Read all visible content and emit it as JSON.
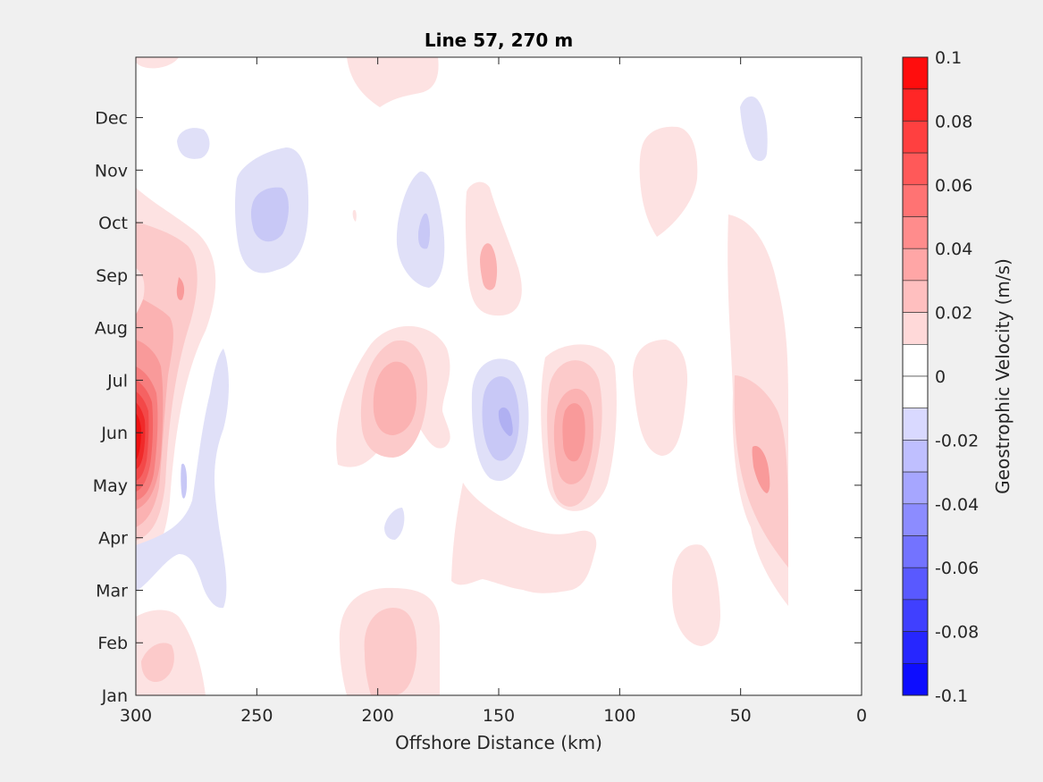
{
  "chart_data": {
    "type": "heatmap",
    "title": "Line 57, 270 m",
    "xlabel": "Offshore Distance (km)",
    "ylabel": "",
    "xlim": [
      300,
      0
    ],
    "x_reversed": true,
    "x_ticks": [
      300,
      250,
      200,
      150,
      100,
      50,
      0
    ],
    "y_ticks": [
      "Jan",
      "Feb",
      "Mar",
      "Apr",
      "May",
      "Jun",
      "Jul",
      "Aug",
      "Sep",
      "Oct",
      "Nov",
      "Dec"
    ],
    "colorbar": {
      "label": "Geostrophic Velocity (m/s)",
      "range": [
        -0.1,
        0.1
      ],
      "tick_values": [
        0.1,
        0.08,
        0.06,
        0.04,
        0.02,
        0,
        -0.02,
        -0.04,
        -0.06,
        -0.08,
        -0.1
      ],
      "tick_labels": [
        "0.1",
        "0.08",
        "0.06",
        "0.04",
        "0.02",
        "0",
        "-0.02",
        "-0.04",
        "-0.06",
        "-0.08",
        "-0.1"
      ],
      "levels": [
        0.1,
        0.09,
        0.08,
        0.07,
        0.06,
        0.05,
        0.04,
        0.03,
        0.02,
        0.01,
        0,
        -0.01,
        -0.02,
        -0.03,
        -0.04,
        -0.05,
        -0.06,
        -0.07,
        -0.08,
        -0.09,
        -0.1
      ],
      "colormap": "blue-white-red"
    },
    "features": [
      {
        "sign": "positive",
        "x": [
          290,
          300
        ],
        "y": [
          4.7,
          5.8
        ],
        "peak": 0.1
      },
      {
        "sign": "positive",
        "x": [
          270,
          300
        ],
        "y": [
          6.5,
          9.3
        ],
        "peak": 0.04
      },
      {
        "sign": "positive",
        "x": [
          180,
          215
        ],
        "y": [
          4.0,
          7.0
        ],
        "peak": 0.04
      },
      {
        "sign": "positive",
        "x": [
          100,
          140
        ],
        "y": [
          3.6,
          7.0
        ],
        "peak": 0.04
      },
      {
        "sign": "positive",
        "x": [
          30,
          55
        ],
        "y": [
          2.0,
          8.9
        ],
        "peak": 0.03
      },
      {
        "sign": "positive",
        "x": [
          165,
          205
        ],
        "y": [
          0.0,
          2.0
        ],
        "peak": 0.02
      },
      {
        "sign": "positive",
        "x": [
          280,
          300
        ],
        "y": [
          0.0,
          1.6
        ],
        "peak": 0.02
      },
      {
        "sign": "positive",
        "x": [
          140,
          170
        ],
        "y": [
          7.3,
          9.6
        ],
        "peak": 0.03
      },
      {
        "sign": "positive",
        "x": [
          70,
          90
        ],
        "y": [
          8.9,
          10.7
        ],
        "peak": 0.01
      },
      {
        "sign": "positive",
        "x": [
          60,
          80
        ],
        "y": [
          1.0,
          2.9
        ],
        "peak": 0.01
      },
      {
        "sign": "negative",
        "x": [
          135,
          160
        ],
        "y": [
          4.0,
          6.4
        ],
        "peak": -0.03
      },
      {
        "sign": "negative",
        "x": [
          225,
          255
        ],
        "y": [
          7.8,
          10.2
        ],
        "peak": -0.02
      },
      {
        "sign": "negative",
        "x": [
          175,
          195
        ],
        "y": [
          7.7,
          9.9
        ],
        "peak": -0.02
      },
      {
        "sign": "negative",
        "x": [
          265,
          285
        ],
        "y": [
          1.7,
          6.4
        ],
        "peak": -0.01
      },
      {
        "sign": "negative",
        "x": [
          40,
          50
        ],
        "y": [
          10.0,
          11.2
        ],
        "peak": -0.01
      }
    ]
  }
}
